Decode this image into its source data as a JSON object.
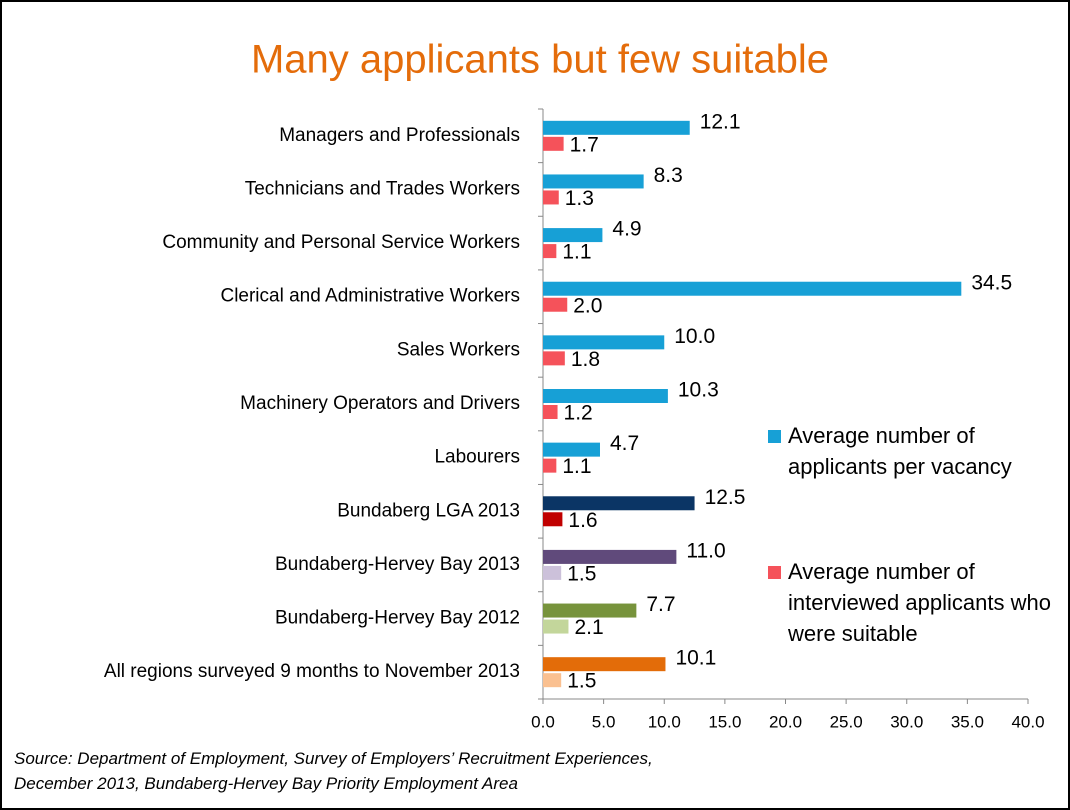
{
  "chart_data": {
    "type": "hbar",
    "title": "Many applicants but few suitable",
    "source": "Source: Department of Employment, Survey of Employers’ Recruitment Experiences, December 2013, Bundaberg-Hervey Bay Priority Employment Area",
    "categories": [
      "Managers and Professionals",
      "Technicians and Trades Workers",
      "Community and Personal Service Workers",
      "Clerical and Administrative Workers",
      "Sales Workers",
      "Machinery Operators and Drivers",
      "Labourers",
      "Bundaberg LGA 2013",
      "Bundaberg-Hervey Bay 2013",
      "Bundaberg-Hervey Bay 2012",
      "All regions surveyed 9 months to November 2013"
    ],
    "series": [
      {
        "name": "Average number of applicants per vacancy",
        "color": "#17a0d6",
        "values": [
          12.1,
          8.3,
          4.9,
          34.5,
          10.0,
          10.3,
          4.7,
          12.5,
          11.0,
          7.7,
          10.1
        ],
        "value_labels": [
          "12.1",
          "8.3",
          "4.9",
          "34.5",
          "10.0",
          "10.3",
          "4.7",
          "12.5",
          "11.0",
          "7.7",
          "10.1"
        ],
        "colors": [
          "#17a0d6",
          "#17a0d6",
          "#17a0d6",
          "#17a0d6",
          "#17a0d6",
          "#17a0d6",
          "#17a0d6",
          "#0b3565",
          "#604a7b",
          "#77933c",
          "#e36c09"
        ]
      },
      {
        "name": "Average number of interviewed applicants who were suitable",
        "color": "#f5525a",
        "values": [
          1.7,
          1.3,
          1.1,
          2.0,
          1.8,
          1.2,
          1.1,
          1.6,
          1.5,
          2.1,
          1.5
        ],
        "value_labels": [
          "1.7",
          "1.3",
          "1.1",
          "2.0",
          "1.8",
          "1.2",
          "1.1",
          "1.6",
          "1.5",
          "2.1",
          "1.5"
        ],
        "colors": [
          "#f5525a",
          "#f5525a",
          "#f5525a",
          "#f5525a",
          "#f5525a",
          "#f5525a",
          "#f5525a",
          "#c00000",
          "#ccc1da",
          "#c3d69b",
          "#fac090"
        ]
      }
    ],
    "xlim": [
      0,
      40
    ],
    "xticks": [
      {
        "value": 0,
        "label": "0.0"
      },
      {
        "value": 5,
        "label": "5.0"
      },
      {
        "value": 10,
        "label": "10.0"
      },
      {
        "value": 15,
        "label": "15.0"
      },
      {
        "value": 20,
        "label": "20.0"
      },
      {
        "value": 25,
        "label": "25.0"
      },
      {
        "value": 30,
        "label": "30.0"
      },
      {
        "value": 35,
        "label": "35.0"
      },
      {
        "value": 40,
        "label": "40.0"
      }
    ]
  }
}
